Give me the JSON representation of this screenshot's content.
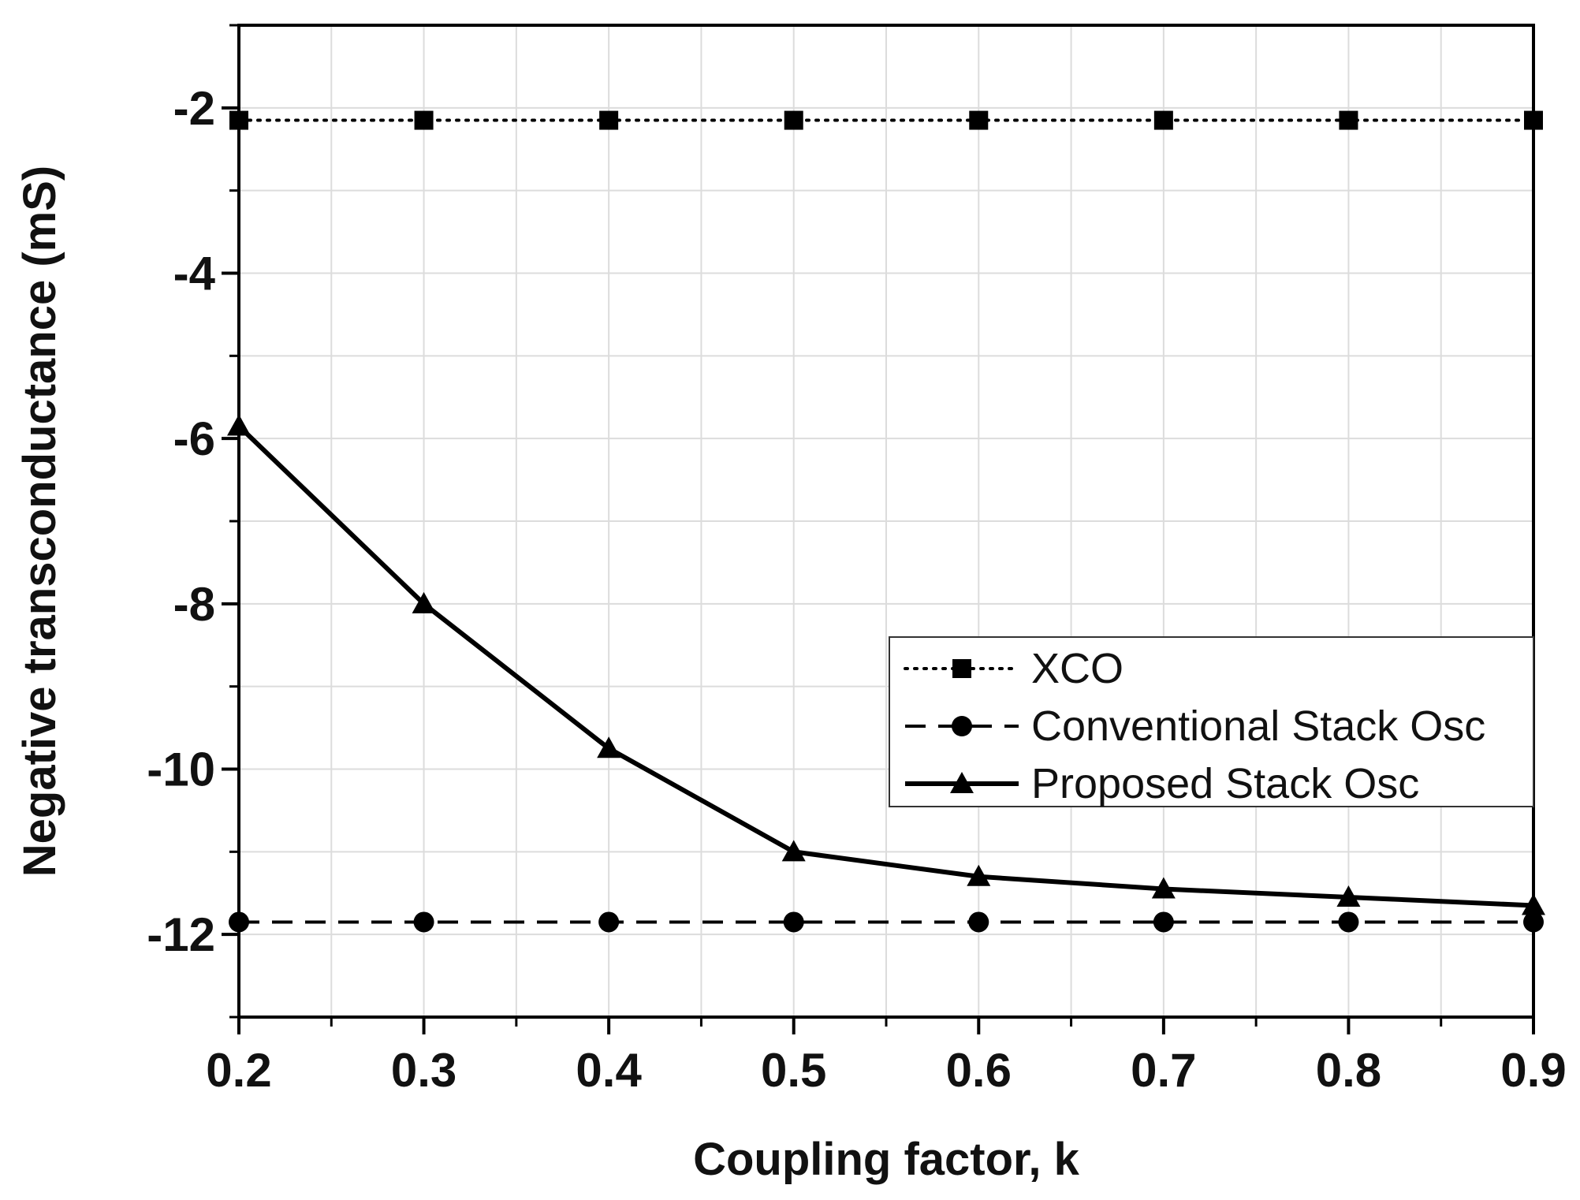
{
  "chart_data": {
    "type": "line",
    "title": "",
    "xlabel": "Coupling factor, k",
    "ylabel": "Negative transconductance (mS)",
    "xlim": [
      0.2,
      0.9
    ],
    "ylim": [
      -13,
      -1
    ],
    "x_ticks": [
      0.2,
      0.3,
      0.4,
      0.5,
      0.6,
      0.7,
      0.8,
      0.9
    ],
    "x_tick_labels": [
      "0.2",
      "0.3",
      "0.4",
      "0.5",
      "0.6",
      "0.7",
      "0.8",
      "0.9"
    ],
    "y_ticks": [
      -2,
      -4,
      -6,
      -8,
      -10,
      -12
    ],
    "y_tick_labels": [
      "-2",
      "-4",
      "-6",
      "-8",
      "-10",
      "-12"
    ],
    "grid": true,
    "legend_position": "center-right",
    "x": [
      0.2,
      0.3,
      0.4,
      0.5,
      0.6,
      0.7,
      0.8,
      0.9
    ],
    "series": [
      {
        "name": "XCO",
        "marker": "square",
        "line_style": "dotted",
        "color": "#000000",
        "values": [
          -2.15,
          -2.15,
          -2.15,
          -2.15,
          -2.15,
          -2.15,
          -2.15,
          -2.15
        ]
      },
      {
        "name": "Conventional Stack Osc",
        "marker": "circle",
        "line_style": "dashed",
        "color": "#000000",
        "values": [
          -11.85,
          -11.85,
          -11.85,
          -11.85,
          -11.85,
          -11.85,
          -11.85,
          -11.85
        ]
      },
      {
        "name": "Proposed Stack Osc",
        "marker": "triangle",
        "line_style": "solid",
        "color": "#000000",
        "values": [
          -5.85,
          -8.0,
          -9.75,
          -11.0,
          -11.3,
          -11.45,
          -11.55,
          -11.65
        ]
      }
    ]
  }
}
